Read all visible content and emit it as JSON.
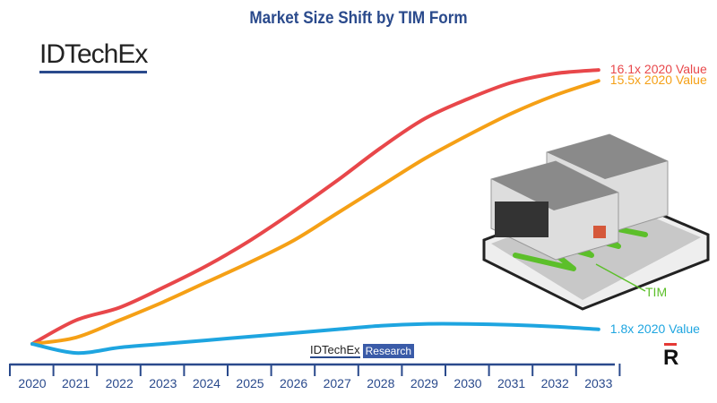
{
  "chart_data": {
    "type": "line",
    "title": "Market Size Shift by TIM Form",
    "categories": [
      "2020",
      "2021",
      "2022",
      "2023",
      "2024",
      "2025",
      "2026",
      "2027",
      "2028",
      "2029",
      "2030",
      "2031",
      "2032",
      "2033"
    ],
    "series": [
      {
        "color": "#e8474a",
        "end_label": "16.1x 2020 Value",
        "values": [
          1,
          2.3,
          3.0,
          4.1,
          5.3,
          6.7,
          8.3,
          10.0,
          11.8,
          13.4,
          14.5,
          15.4,
          15.9,
          16.1
        ]
      },
      {
        "color": "#f5a016",
        "end_label": "15.5x 2020 Value",
        "values": [
          1,
          1.35,
          2.3,
          3.3,
          4.4,
          5.5,
          6.7,
          8.2,
          9.7,
          11.2,
          12.5,
          13.7,
          14.7,
          15.5
        ]
      },
      {
        "color": "#1ea5e0",
        "end_label": "1.8x 2020 Value",
        "values": [
          1,
          0.5,
          0.8,
          1.0,
          1.2,
          1.4,
          1.6,
          1.8,
          2.0,
          2.1,
          2.1,
          2.05,
          1.95,
          1.8
        ]
      }
    ],
    "y_axis_shown": false,
    "grid": false,
    "xaxis_color": "#2a4a8c"
  },
  "logo": "IDTechEx",
  "watermark": {
    "a": "IDTechEx",
    "b": "Research"
  },
  "illustration_label": "TIM",
  "corner_logo": "R"
}
